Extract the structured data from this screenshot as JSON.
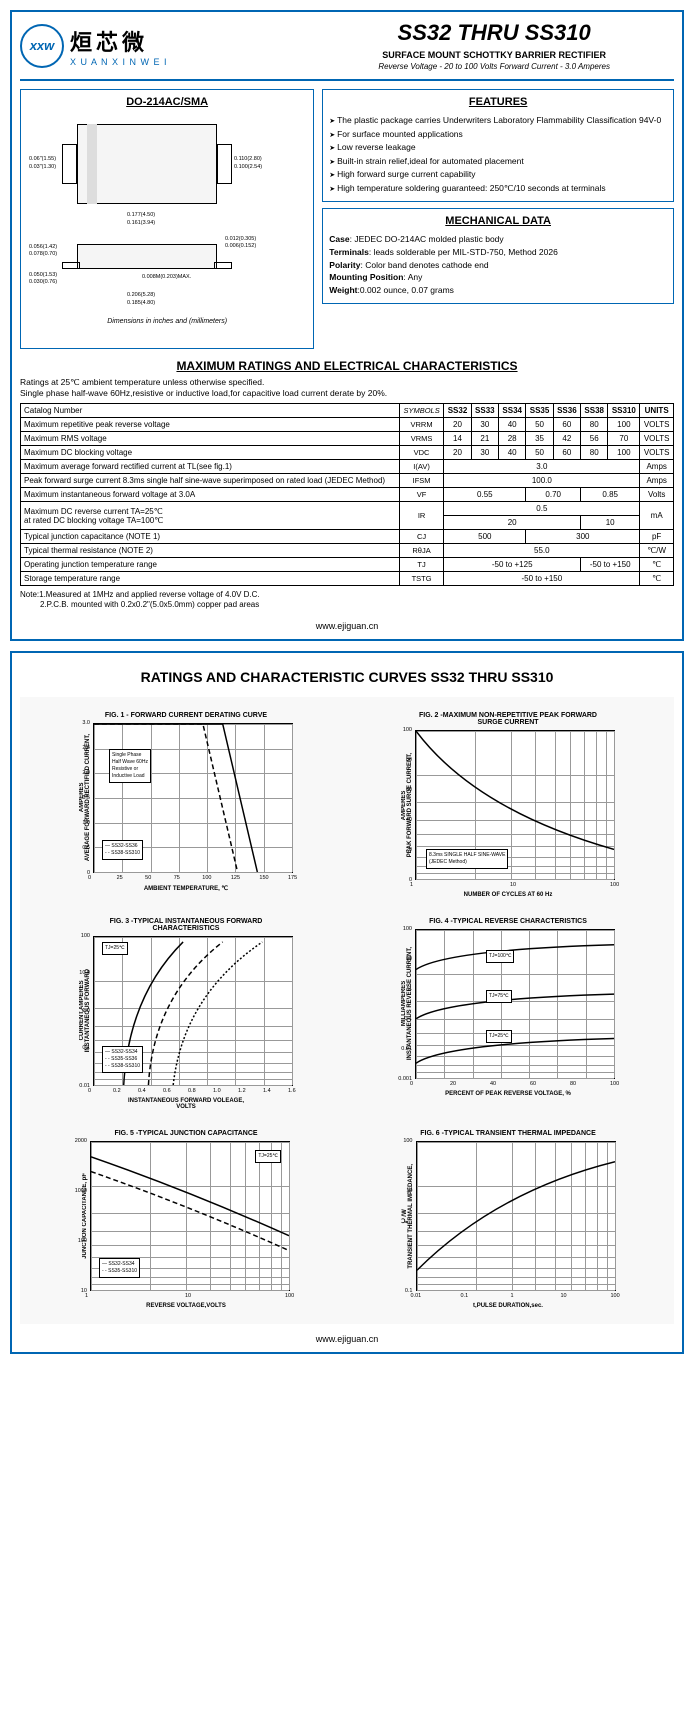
{
  "header": {
    "logo_abbr": "xxw",
    "logo_cn": "烜芯微",
    "logo_en": "X U A N X I N W E I",
    "title": "SS32 THRU SS310",
    "subtitle": "SURFACE MOUNT SCHOTTKY BARRIER RECTIFIER",
    "specs": "Reverse Voltage - 20 to 100 Volts  Forward Current - 3.0 Amperes"
  },
  "package": {
    "title": "DO-214AC/SMA",
    "note": "Dimensions in inches and (millimeters)",
    "dims": [
      "0.06\"(1.55)",
      "0.03\"(1.30)",
      "0.110(2.80)",
      "0.100(2.54)",
      "0.177(4.50)",
      "0.161(3.94)",
      "0.012(0.305)",
      "0.006(0.152)",
      "0.056(1.42)",
      "0.078(0.70)",
      "0.050(1.53)",
      "0.030(0.76)",
      "0.008M(0.203)MAX.",
      "0.206(5.28)",
      "0.185(4.80)"
    ]
  },
  "features": {
    "title": "FEATURES",
    "items": [
      "The plastic package carries Underwriters Laboratory Flammability Classification 94V-0",
      "For surface mounted applications",
      "Low reverse leakage",
      "Built-in strain relief,ideal for automated placement",
      "High forward surge current capability",
      "High temperature soldering guaranteed: 250℃/10 seconds at terminals"
    ]
  },
  "mechanical": {
    "title": "MECHANICAL DATA",
    "case": "JEDEC DO-214AC molded plastic body",
    "terminals": "leads solderable per MIL-STD-750, Method 2026",
    "polarity": "Color band denotes cathode end",
    "mounting": "Any",
    "weight": "0.002 ounce, 0.07 grams"
  },
  "ratings_section": {
    "title": "MAXIMUM RATINGS AND ELECTRICAL CHARACTERISTICS",
    "note": "Ratings at 25℃ ambient temperature unless otherwise specified.\nSingle phase half-wave 60Hz,resistive or inductive load,for capacitive load current derate by 20%.",
    "catalog_label": "Catalog  Number",
    "symbols_label": "SYMBOLS",
    "units_label": "UNITS",
    "parts": [
      "SS32",
      "SS33",
      "SS34",
      "SS35",
      "SS36",
      "SS38",
      "SS310"
    ],
    "rows": [
      {
        "label": "Maximum repetitive peak reverse voltage",
        "sym": "VRRM",
        "vals": [
          "20",
          "30",
          "40",
          "50",
          "60",
          "80",
          "100"
        ],
        "unit": "VOLTS"
      },
      {
        "label": "Maximum RMS voltage",
        "sym": "VRMS",
        "vals": [
          "14",
          "21",
          "28",
          "35",
          "42",
          "56",
          "70"
        ],
        "unit": "VOLTS"
      },
      {
        "label": "Maximum DC blocking voltage",
        "sym": "VDC",
        "vals": [
          "20",
          "30",
          "40",
          "50",
          "60",
          "80",
          "100"
        ],
        "unit": "VOLTS"
      },
      {
        "label": "Maximum average forward rectified current at TL(see fig.1)",
        "sym": "I(AV)",
        "span": "3.0",
        "unit": "Amps"
      },
      {
        "label": "Peak forward surge current 8.3ms single half sine-wave superimposed on rated load (JEDEC Method)",
        "sym": "IFSM",
        "span": "100.0",
        "unit": "Amps"
      },
      {
        "label": "Maximum instantaneous forward voltage at 3.0A",
        "sym": "VF",
        "groups": [
          {
            "span": 3,
            "val": "0.55"
          },
          {
            "span": 2,
            "val": "0.70"
          },
          {
            "span": 2,
            "val": "0.85"
          }
        ],
        "unit": "Volts"
      },
      {
        "label": "Maximum DC reverse current    TA=25℃\nat rated DC blocking voltage       TA=100℃",
        "sym": "IR",
        "double": [
          {
            "groups": [
              {
                "span": 7,
                "val": "0.5"
              }
            ]
          },
          {
            "groups": [
              {
                "span": 5,
                "val": "20"
              },
              {
                "span": 2,
                "val": "10"
              }
            ]
          }
        ],
        "unit": "mA"
      },
      {
        "label": "Typical junction capacitance (NOTE 1)",
        "sym": "CJ",
        "groups": [
          {
            "span": 3,
            "val": "500"
          },
          {
            "span": 4,
            "val": "300"
          }
        ],
        "unit": "pF"
      },
      {
        "label": "Typical thermal resistance (NOTE 2)",
        "sym": "RθJA",
        "span": "55.0",
        "unit": "℃/W"
      },
      {
        "label": "Operating junction temperature range",
        "sym": "TJ",
        "groups": [
          {
            "span": 5,
            "val": "-50 to +125"
          },
          {
            "span": 2,
            "val": "-50 to +150"
          }
        ],
        "unit": "℃"
      },
      {
        "label": "Storage temperature range",
        "sym": "TSTG",
        "span": "-50 to +150",
        "unit": "℃"
      }
    ],
    "footnote": "Note:1.Measured at 1MHz and applied reverse voltage of 4.0V D.C.\n         2.P.C.B. mounted with 0.2x0.2\"(5.0x5.0mm) copper pad areas"
  },
  "url": "www.ejiguan.cn",
  "page2_title": "RATINGS AND CHARACTERISTIC CURVES SS32 THRU SS310",
  "charts": [
    {
      "title": "FIG. 1 - FORWARD CURRENT DERATING CURVE",
      "ylabel": "AVERAGE FORWARD RECTIFIED CURRENT,\nAMPERES",
      "xlabel": "AMBIENT TEMPERATURE, ℃",
      "yticks": [
        "0",
        "0.5",
        "1.0",
        "1.5",
        "2.0",
        "2.4",
        "3.0"
      ],
      "xticks": [
        "0",
        "25",
        "50",
        "75",
        "100",
        "125",
        "150",
        "175"
      ],
      "legend": [
        "SS32-SS36",
        "SS38-SS310"
      ],
      "note": "Single Phase\nHalf Wave 60Hz\nResistive or\nInductive Load"
    },
    {
      "title": "FIG. 2 -MAXIMUM NON-REPETITIVE PEAK FORWARD\nSURGE CURRENT",
      "ylabel": "PEAK FORWARD SURGE CURRENT,\nAMPERES",
      "xlabel": "NUMBER OF CYCLES AT 60 Hz",
      "yticks": [
        "0",
        "20",
        "40",
        "60",
        "80",
        "100"
      ],
      "xticks": [
        "1",
        "10",
        "100"
      ],
      "note": "8.3ms SINGLE HALF SINE-WAVE\n(JEDEC Method)"
    },
    {
      "title": "FIG. 3 -TYPICAL INSTANTANEOUS FORWARD\nCHARACTERISTICS",
      "ylabel": "INSTANTANEOUS FORWARD\nCURRENT,AMPERES",
      "xlabel": "INSTANTANEOUS FORWARD VOLEAGE,\nVOLTS",
      "yticks": [
        "0.01",
        "0.1",
        "1.0",
        "10.0",
        "100"
      ],
      "xticks": [
        "0",
        "0.2",
        "0.4",
        "0.6",
        "0.8",
        "1.0",
        "1.2",
        "1.4",
        "1.6"
      ],
      "legend": [
        "SS32-SS34",
        "SS35-SS36",
        "SS38-SS310"
      ],
      "note": "TJ=25℃"
    },
    {
      "title": "FIG. 4 -TYPICAL REVERSE CHARACTERISTICS",
      "ylabel": "INSTANTANEOUS REVERSE CURRENT,\nMILLIAMPERES",
      "xlabel": "PERCENT OF PEAK REVERSE VOLTAGE, %",
      "yticks": [
        "0.001",
        "0.01",
        "0.1",
        "1",
        "10",
        "100"
      ],
      "xticks": [
        "0",
        "20",
        "40",
        "60",
        "80",
        "100"
      ],
      "annotations": [
        "TJ=100℃",
        "TJ=75℃",
        "TJ=25℃"
      ]
    },
    {
      "title": "FIG. 5 -TYPICAL JUNCTION CAPACITANCE",
      "ylabel": "JUNCTION CAPACITANCE, pF",
      "xlabel": "REVERSE VOLTAGE,VOLTS",
      "yticks": [
        "10",
        "100",
        "1000",
        "2000"
      ],
      "xticks": [
        "1",
        "10",
        "100"
      ],
      "legend": [
        "SS32-SS34",
        "SS35-SS310"
      ],
      "note": "TJ=25℃"
    },
    {
      "title": "FIG. 6 -TYPICAL TRANSIENT THERMAL IMPEDANCE",
      "ylabel": "TRANSIENT THERMAL IMPEDANCE,\n℃/W",
      "xlabel": "t,PULSE DURATION,sec.",
      "yticks": [
        "0.1",
        "1",
        "10",
        "100"
      ],
      "xticks": [
        "0.01",
        "0.1",
        "1",
        "10",
        "100"
      ]
    }
  ]
}
